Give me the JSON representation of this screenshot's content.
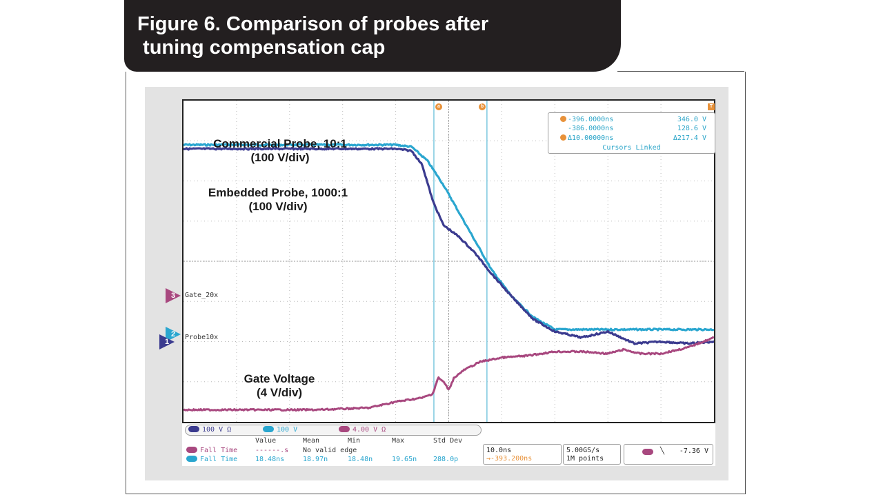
{
  "figure": {
    "title_line1": "Figure 6. Comparison of probes after",
    "title_line2": " tuning compensation cap"
  },
  "annotations": {
    "commercial_1": "Commercial Probe, 10:1",
    "commercial_2": "(100 V/div)",
    "embedded_1": "Embedded Probe, 1000:1",
    "embedded_2": "(100 V/div)",
    "gate_1": "Gate Voltage",
    "gate_2": "(4 V/div)"
  },
  "cursors": {
    "a_label": "a",
    "b_label": "b",
    "row1_time": "-396.0000ns",
    "row1_val": "346.0 V",
    "row2_time": "-386.0000ns",
    "row2_val": "128.6 V",
    "delta_time": "Δ10.00000ns",
    "delta_val": "Δ217.4 V",
    "linked": "Cursors Linked"
  },
  "channel_markers": {
    "ch3_num": "3",
    "ch3_label": "Gate_20x",
    "ch2_num": "2",
    "ch2_label": "Probe10x",
    "ch1_num": "1"
  },
  "trigger_marker": "T",
  "channel_bar": {
    "ch1": "100 V Ω",
    "ch2": "100 V",
    "ch3": "4.00 V Ω"
  },
  "measurements": {
    "headers": [
      "Value",
      "Mean",
      "Min",
      "Max",
      "Std Dev"
    ],
    "row1_name": "Fall Time",
    "row1_value": "------.s",
    "row1_note": "No valid edge",
    "row2_name": "Fall Time",
    "row2_value": "18.48ns",
    "row2_mean": "18.97n",
    "row2_min": "18.48n",
    "row2_max": "19.65n",
    "row2_std": "288.0p"
  },
  "timebase": {
    "scale": "10.0ns",
    "position": "→-393.200ns"
  },
  "acquisition": {
    "rate": "5.00GS/s",
    "points": "1M points"
  },
  "trigger": {
    "slope": "╲",
    "level": "-7.36 V"
  },
  "colors": {
    "ch1": "#3b3b8f",
    "ch2": "#2aa6cf",
    "ch3": "#a8487f",
    "cursor": "#7cc8df",
    "accent": "#e8923a"
  },
  "chart_data": {
    "type": "line",
    "title": "",
    "xlabel": "",
    "ylabel": "",
    "grid": true,
    "x_divisions": 10,
    "y_divisions": 8,
    "time_per_div_ns": 10,
    "cursor_a_ns": -396.0,
    "cursor_b_ns": -386.0,
    "series": [
      {
        "name": "Commercial Probe, 10:1",
        "x_div": [
          0,
          4.0,
          4.3,
          4.6,
          4.9,
          5.2,
          5.5,
          5.8,
          6.2,
          6.6,
          7.0,
          8.0,
          10.0
        ],
        "y_div": [
          6.9,
          6.9,
          6.85,
          6.5,
          5.9,
          5.2,
          4.5,
          3.8,
          3.1,
          2.6,
          2.3,
          2.3,
          2.3
        ]
      },
      {
        "name": "Embedded Probe, 1000:1",
        "x_div": [
          0,
          4.0,
          4.3,
          4.5,
          4.7,
          4.9,
          5.0,
          5.2,
          5.5,
          5.8,
          6.2,
          6.6,
          7.0,
          7.5,
          8.0,
          8.5,
          9.0,
          9.5,
          10.0
        ],
        "y_div": [
          6.8,
          6.8,
          6.75,
          6.4,
          5.5,
          4.9,
          4.8,
          4.6,
          4.2,
          3.7,
          3.1,
          2.55,
          2.25,
          2.1,
          2.25,
          1.95,
          2.0,
          1.95,
          2.0
        ]
      },
      {
        "name": "Gate Voltage",
        "x_div": [
          0,
          2.5,
          3.5,
          4.0,
          4.5,
          4.7,
          4.8,
          4.9,
          5.0,
          5.1,
          5.3,
          5.6,
          6.0,
          6.5,
          7.0,
          7.5,
          8.0,
          8.3,
          8.6,
          9.0,
          9.5,
          10.0
        ],
        "y_div": [
          0.3,
          0.3,
          0.35,
          0.5,
          0.6,
          0.7,
          1.1,
          1.0,
          0.8,
          1.1,
          1.3,
          1.5,
          1.6,
          1.65,
          1.75,
          1.75,
          1.7,
          1.8,
          1.7,
          1.7,
          1.85,
          2.1
        ]
      }
    ]
  }
}
